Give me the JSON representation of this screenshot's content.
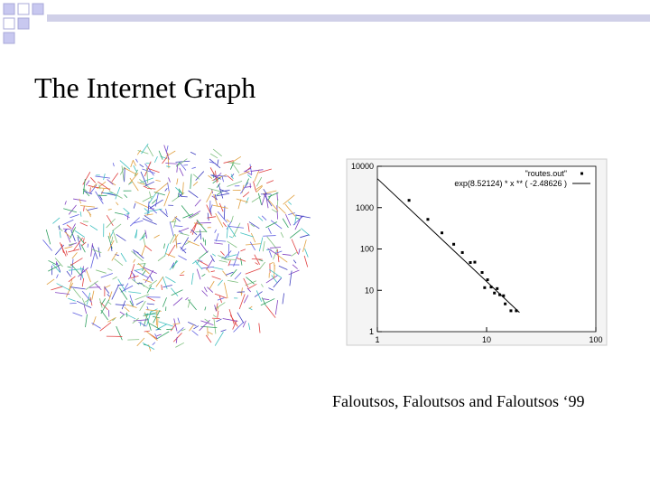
{
  "slide": {
    "title": "The Internet Graph",
    "citation": "Faloutsos, Faloutsos and Faloutsos ‘99"
  },
  "chart_data": {
    "type": "scatter",
    "log_x": true,
    "log_y": true,
    "xlim": [
      1,
      100
    ],
    "xticks": [
      1,
      10,
      100
    ],
    "ylim": [
      1,
      10000
    ],
    "yticks": [
      1,
      10,
      100,
      1000,
      10000
    ],
    "legend": "top-right",
    "series": [
      {
        "name": "\"routes.out\"",
        "color": "#000000",
        "mode": "points",
        "x": [
          1.95,
          2.9,
          3.9,
          5.0,
          6.0,
          7.1,
          7.8,
          9.1,
          9.6,
          10.2,
          11,
          11.8,
          12.5,
          13.2,
          14.3,
          14.8,
          16.7,
          18.7
        ],
        "values": [
          1500,
          520,
          245,
          130,
          82,
          47,
          48,
          27,
          11.6,
          18,
          12,
          8.6,
          11,
          7.8,
          7.4,
          4.7,
          3.2,
          3.2
        ]
      },
      {
        "name": "exp(8.52124) * x ** ( -2.48626 )",
        "color": "#000000",
        "mode": "line",
        "x": [
          1,
          20
        ],
        "values": [
          5021,
          2.92
        ]
      }
    ]
  }
}
